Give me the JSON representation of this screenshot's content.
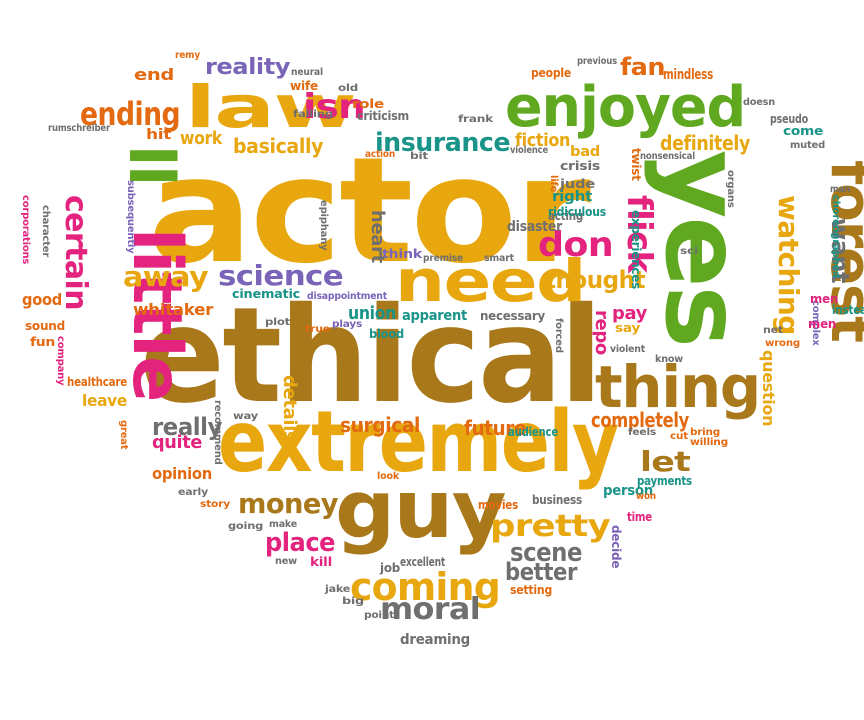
{
  "palette": {
    "gold": "#e8a70e",
    "brown": "#a8781a",
    "green": "#5fa820",
    "teal": "#1a9488",
    "magenta": "#e3237d",
    "orange": "#e36a10",
    "purple": "#7a64b8",
    "gray": "#6f6f6f"
  },
  "words": [
    "actor",
    "ethical",
    "yes",
    "extremely",
    "guy",
    "law",
    "enjoyed",
    "forest",
    "little",
    "ll",
    "need",
    "thing",
    "don",
    "flick",
    "ending",
    "isn",
    "certain",
    "away",
    "science",
    "coming",
    "pretty",
    "money",
    "moral",
    "insurance",
    "thought",
    "watching",
    "want",
    "let",
    "scene",
    "better",
    "place",
    "reality",
    "definitely",
    "fan",
    "really",
    "completely",
    "future",
    "surgical",
    "repo",
    "pay",
    "union",
    "heart",
    "details",
    "question",
    "basically",
    "whitaker",
    "quite",
    "end",
    "work",
    "fiction",
    "person",
    "opinion",
    "good",
    "leave",
    "apparent",
    "wife",
    "hit",
    "previous",
    "people",
    "mindless",
    "come",
    "muted",
    "pseudo",
    "doesn",
    "bad",
    "crisis",
    "twist",
    "right",
    "jude",
    "disaster",
    "acting",
    "experiences",
    "corporations",
    "character",
    "subsequently",
    "epiphany",
    "cinematic",
    "disappointment",
    "plot",
    "true",
    "plays",
    "blood",
    "necessary",
    "forced",
    "violent",
    "know",
    "net",
    "wrong",
    "instead",
    "complex",
    "man",
    "choreographed",
    "organs",
    "sci",
    "say",
    "bring",
    "cut",
    "willing",
    "feels",
    "audience",
    "payments",
    "won",
    "time",
    "decide",
    "business",
    "movies",
    "look",
    "job",
    "excellent",
    "new",
    "kill",
    "make",
    "going",
    "story",
    "early",
    "great",
    "recommend",
    "way",
    "sound",
    "fun",
    "company",
    "healthcare",
    "jake",
    "big",
    "point",
    "setting",
    "dreaming",
    "remy",
    "neural",
    "old",
    "role",
    "criticism",
    "frank",
    "falling",
    "violence",
    "bit",
    "action",
    "premise",
    "think",
    "smart",
    "life",
    "ridiculous",
    "nonsensical",
    "men",
    "rumschreiber",
    "men"
  ]
}
